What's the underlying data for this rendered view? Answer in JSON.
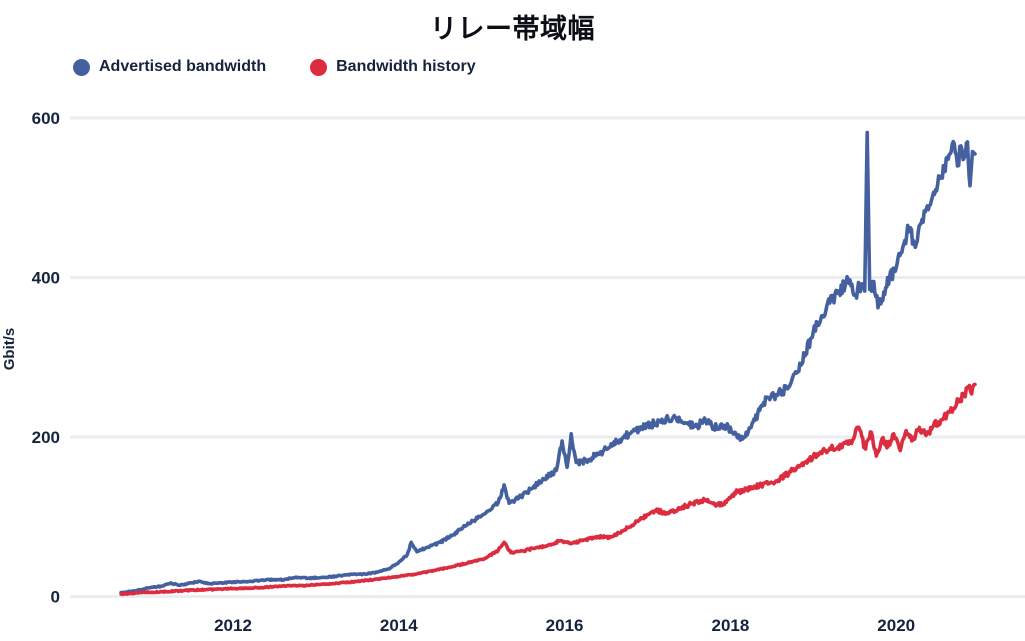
{
  "chart_data": {
    "type": "line",
    "title": "リレー帯域幅",
    "ylabel": "Gbit/s",
    "xlabel": "",
    "grid": "horizontal",
    "legend_position": "top-left",
    "x_ticks": [
      2012,
      2014,
      2016,
      2018,
      2020
    ],
    "y_ticks": [
      0,
      200,
      400,
      600
    ],
    "x_range": [
      2010.0,
      2021.55
    ],
    "ylim": [
      0,
      600
    ],
    "series": [
      {
        "name": "Advertised bandwidth",
        "color": "#44609e",
        "points": [
          [
            2010.65,
            5
          ],
          [
            2010.8,
            7
          ],
          [
            2011.0,
            11
          ],
          [
            2011.15,
            13
          ],
          [
            2011.25,
            17
          ],
          [
            2011.35,
            14
          ],
          [
            2011.5,
            17
          ],
          [
            2011.6,
            19
          ],
          [
            2011.7,
            16
          ],
          [
            2011.85,
            17
          ],
          [
            2012.0,
            18
          ],
          [
            2012.2,
            19
          ],
          [
            2012.4,
            21
          ],
          [
            2012.6,
            21
          ],
          [
            2012.75,
            24
          ],
          [
            2012.9,
            23
          ],
          [
            2013.1,
            24
          ],
          [
            2013.3,
            26
          ],
          [
            2013.45,
            28
          ],
          [
            2013.6,
            28
          ],
          [
            2013.75,
            31
          ],
          [
            2013.9,
            36
          ],
          [
            2014.0,
            43
          ],
          [
            2014.1,
            52
          ],
          [
            2014.15,
            68
          ],
          [
            2014.22,
            56
          ],
          [
            2014.35,
            62
          ],
          [
            2014.5,
            68
          ],
          [
            2014.65,
            77
          ],
          [
            2014.8,
            88
          ],
          [
            2014.95,
            98
          ],
          [
            2015.1,
            108
          ],
          [
            2015.2,
            118
          ],
          [
            2015.27,
            140
          ],
          [
            2015.33,
            117
          ],
          [
            2015.45,
            124
          ],
          [
            2015.6,
            135
          ],
          [
            2015.75,
            147
          ],
          [
            2015.9,
            158
          ],
          [
            2015.97,
            195
          ],
          [
            2016.03,
            162
          ],
          [
            2016.08,
            204
          ],
          [
            2016.14,
            168
          ],
          [
            2016.25,
            170
          ],
          [
            2016.4,
            178
          ],
          [
            2016.55,
            188
          ],
          [
            2016.7,
            199
          ],
          [
            2016.85,
            208
          ],
          [
            2017.0,
            214
          ],
          [
            2017.15,
            220
          ],
          [
            2017.3,
            223
          ],
          [
            2017.45,
            218
          ],
          [
            2017.6,
            214
          ],
          [
            2017.7,
            221
          ],
          [
            2017.8,
            212
          ],
          [
            2017.95,
            213
          ],
          [
            2018.05,
            206
          ],
          [
            2018.12,
            196
          ],
          [
            2018.25,
            212
          ],
          [
            2018.4,
            243
          ],
          [
            2018.55,
            253
          ],
          [
            2018.7,
            262
          ],
          [
            2018.85,
            290
          ],
          [
            2019.0,
            332
          ],
          [
            2019.1,
            352
          ],
          [
            2019.2,
            368
          ],
          [
            2019.3,
            380
          ],
          [
            2019.42,
            398
          ],
          [
            2019.5,
            378
          ],
          [
            2019.58,
            392
          ],
          [
            2019.62,
            383
          ],
          [
            2019.65,
            582
          ],
          [
            2019.68,
            385
          ],
          [
            2019.73,
            395
          ],
          [
            2019.78,
            362
          ],
          [
            2019.85,
            382
          ],
          [
            2019.92,
            400
          ],
          [
            2020.0,
            412
          ],
          [
            2020.08,
            438
          ],
          [
            2020.15,
            462
          ],
          [
            2020.22,
            442
          ],
          [
            2020.3,
            468
          ],
          [
            2020.4,
            490
          ],
          [
            2020.5,
            517
          ],
          [
            2020.58,
            538
          ],
          [
            2020.65,
            555
          ],
          [
            2020.7,
            568
          ],
          [
            2020.74,
            540
          ],
          [
            2020.78,
            565
          ],
          [
            2020.82,
            550
          ],
          [
            2020.86,
            570
          ],
          [
            2020.89,
            515
          ],
          [
            2020.92,
            558
          ],
          [
            2020.95,
            555
          ]
        ]
      },
      {
        "name": "Bandwidth history",
        "color": "#dc2c3f",
        "points": [
          [
            2010.65,
            3
          ],
          [
            2010.9,
            5
          ],
          [
            2011.2,
            6
          ],
          [
            2011.5,
            8
          ],
          [
            2011.8,
            9
          ],
          [
            2012.0,
            10
          ],
          [
            2012.3,
            11
          ],
          [
            2012.6,
            13
          ],
          [
            2012.9,
            14
          ],
          [
            2013.2,
            16
          ],
          [
            2013.5,
            19
          ],
          [
            2013.75,
            22
          ],
          [
            2014.0,
            25
          ],
          [
            2014.2,
            28
          ],
          [
            2014.45,
            33
          ],
          [
            2014.7,
            39
          ],
          [
            2014.9,
            44
          ],
          [
            2015.05,
            48
          ],
          [
            2015.2,
            58
          ],
          [
            2015.27,
            68
          ],
          [
            2015.35,
            55
          ],
          [
            2015.5,
            57
          ],
          [
            2015.65,
            61
          ],
          [
            2015.8,
            64
          ],
          [
            2015.95,
            70
          ],
          [
            2016.1,
            67
          ],
          [
            2016.25,
            71
          ],
          [
            2016.4,
            75
          ],
          [
            2016.55,
            74
          ],
          [
            2016.7,
            82
          ],
          [
            2016.85,
            92
          ],
          [
            2017.0,
            103
          ],
          [
            2017.1,
            108
          ],
          [
            2017.25,
            104
          ],
          [
            2017.4,
            111
          ],
          [
            2017.55,
            117
          ],
          [
            2017.7,
            121
          ],
          [
            2017.85,
            115
          ],
          [
            2017.95,
            118
          ],
          [
            2018.05,
            130
          ],
          [
            2018.2,
            134
          ],
          [
            2018.35,
            139
          ],
          [
            2018.5,
            143
          ],
          [
            2018.6,
            148
          ],
          [
            2018.75,
            158
          ],
          [
            2018.9,
            168
          ],
          [
            2019.0,
            176
          ],
          [
            2019.15,
            183
          ],
          [
            2019.3,
            188
          ],
          [
            2019.45,
            193
          ],
          [
            2019.55,
            212
          ],
          [
            2019.62,
            186
          ],
          [
            2019.7,
            206
          ],
          [
            2019.76,
            176
          ],
          [
            2019.83,
            198
          ],
          [
            2019.9,
            188
          ],
          [
            2019.97,
            204
          ],
          [
            2020.05,
            183
          ],
          [
            2020.12,
            208
          ],
          [
            2020.2,
            196
          ],
          [
            2020.28,
            212
          ],
          [
            2020.36,
            202
          ],
          [
            2020.45,
            214
          ],
          [
            2020.55,
            222
          ],
          [
            2020.65,
            232
          ],
          [
            2020.75,
            244
          ],
          [
            2020.82,
            252
          ],
          [
            2020.87,
            263
          ],
          [
            2020.91,
            254
          ],
          [
            2020.95,
            266
          ]
        ]
      }
    ]
  }
}
